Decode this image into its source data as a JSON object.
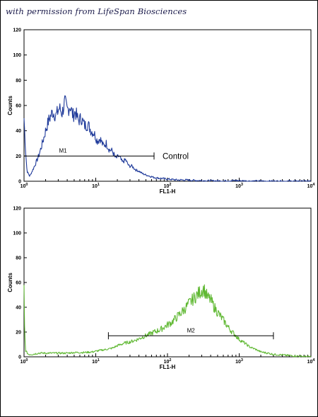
{
  "credit_text": "with permission from LifeSpan Biosciences",
  "chart_data": [
    {
      "type": "line",
      "title": "",
      "xlabel": "FL1-H",
      "ylabel": "Counts",
      "xscale": "log",
      "xlim": [
        1,
        10000
      ],
      "ylim": [
        0,
        120
      ],
      "xticks": [
        {
          "base": "10",
          "exp": "0"
        },
        {
          "base": "10",
          "exp": "1"
        },
        {
          "base": "10",
          "exp": "2"
        },
        {
          "base": "10",
          "exp": "3"
        },
        {
          "base": "10",
          "exp": "4"
        }
      ],
      "yticks": [
        "0",
        "20",
        "40",
        "60",
        "80",
        "100",
        "120"
      ],
      "series": [
        {
          "color": "#1f3a9a",
          "x": [
            1.0,
            1.05,
            1.1,
            1.2,
            1.3,
            1.45,
            1.6,
            1.8,
            2.0,
            2.2,
            2.5,
            2.8,
            3.1,
            3.4,
            3.7,
            4.0,
            4.4,
            4.8,
            5.2,
            5.7,
            6.3,
            7.0,
            7.8,
            8.6,
            9.5,
            10.5,
            11.5,
            12.7,
            14,
            15.5,
            17,
            19,
            21,
            23.5,
            26,
            29,
            32,
            36,
            40,
            45,
            50,
            57,
            65,
            75,
            90,
            110,
            140,
            180,
            230,
            300,
            400,
            600,
            900,
            1500,
            3000,
            6000,
            10000
          ],
          "y": [
            50,
            25,
            8,
            4,
            8,
            14,
            20,
            30,
            40,
            48,
            55,
            52,
            58,
            54,
            63,
            56,
            60,
            52,
            55,
            48,
            50,
            44,
            45,
            40,
            38,
            32,
            34,
            28,
            30,
            25,
            24,
            18,
            20,
            15,
            17,
            12,
            12,
            9,
            8,
            6,
            5,
            4,
            3,
            2.5,
            2,
            1.5,
            1,
            1,
            0.7,
            0.5,
            0.3,
            0.2,
            0.5,
            0.1,
            0,
            0,
            0
          ]
        }
      ],
      "markers": [
        {
          "label": "M1",
          "x_start": 1,
          "x_end": 65,
          "y": 20
        }
      ],
      "annotations": [
        "Control"
      ]
    },
    {
      "type": "line",
      "title": "",
      "xlabel": "FL1-H",
      "ylabel": "Counts",
      "xscale": "log",
      "xlim": [
        1,
        10000
      ],
      "ylim": [
        0,
        120
      ],
      "xticks": [
        {
          "base": "10",
          "exp": "0"
        },
        {
          "base": "10",
          "exp": "1"
        },
        {
          "base": "10",
          "exp": "2"
        },
        {
          "base": "10",
          "exp": "3"
        },
        {
          "base": "10",
          "exp": "4"
        }
      ],
      "yticks": [
        "0",
        "20",
        "40",
        "60",
        "80",
        "100",
        "120"
      ],
      "series": [
        {
          "color": "#5fb832",
          "x": [
            1.0,
            1.02,
            1.05,
            1.15,
            1.3,
            1.6,
            2,
            3,
            4,
            5,
            7,
            9,
            11,
            14,
            17,
            20,
            25,
            30,
            38,
            45,
            55,
            65,
            80,
            95,
            115,
            140,
            170,
            200,
            240,
            280,
            320,
            360,
            400,
            450,
            500,
            560,
            630,
            700,
            800,
            900,
            1000,
            1200,
            1400,
            1700,
            2000,
            2500,
            3000,
            4000,
            5000,
            7000,
            10000
          ],
          "y": [
            55,
            20,
            5,
            2,
            2,
            3,
            3,
            3,
            3,
            3.5,
            3.5,
            4,
            5,
            6,
            7,
            9,
            11,
            12,
            14,
            16,
            18,
            20,
            22,
            25,
            28,
            33,
            38,
            43,
            48,
            52,
            55,
            48,
            46,
            40,
            36,
            32,
            28,
            24,
            20,
            17,
            14,
            11,
            8,
            6,
            4,
            3,
            2,
            1.5,
            1,
            0.5,
            0
          ]
        }
      ],
      "markers": [
        {
          "label": "M2",
          "x_start": 15,
          "x_end": 3000,
          "y": 17
        }
      ],
      "annotations": []
    }
  ]
}
